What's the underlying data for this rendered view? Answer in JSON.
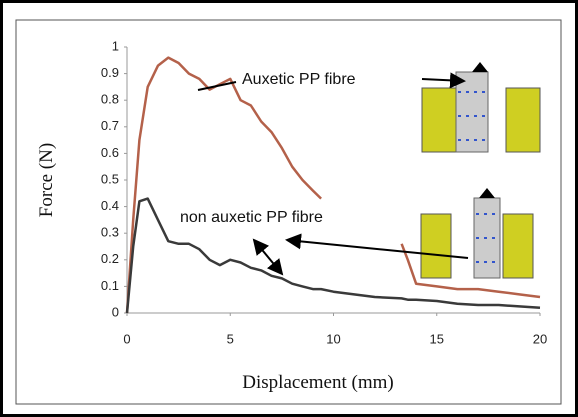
{
  "chart_data": {
    "type": "line",
    "x": [
      0,
      0.3,
      0.6,
      1,
      1.5,
      2,
      2.5,
      3,
      3.5,
      4,
      4.5,
      5,
      5.5,
      6,
      6.5,
      7,
      7.5,
      8,
      8.5,
      9,
      9.4,
      10,
      11,
      12,
      13.3,
      13.6,
      14,
      15,
      16,
      17,
      18,
      19,
      20
    ],
    "series": [
      {
        "name": "Auxetic PP fibre",
        "color": "#b4614a",
        "values": [
          0,
          0.35,
          0.65,
          0.85,
          0.93,
          0.96,
          0.94,
          0.9,
          0.88,
          0.84,
          0.86,
          0.88,
          0.8,
          0.78,
          0.72,
          0.68,
          0.62,
          0.55,
          0.5,
          0.46,
          0.43,
          null,
          null,
          null,
          0.26,
          0.2,
          0.11,
          0.1,
          0.09,
          0.09,
          0.08,
          0.07,
          0.06
        ]
      },
      {
        "name": "non auxetic PP fibre",
        "color": "#3a3a3a",
        "values": [
          0,
          0.25,
          0.42,
          0.43,
          0.35,
          0.27,
          0.26,
          0.26,
          0.24,
          0.2,
          0.18,
          0.2,
          0.19,
          0.17,
          0.16,
          0.14,
          0.13,
          0.11,
          0.1,
          0.09,
          0.09,
          0.08,
          0.07,
          0.06,
          0.055,
          0.05,
          0.05,
          0.045,
          0.035,
          0.03,
          0.03,
          0.025,
          0.02
        ]
      }
    ],
    "xlabel": "Displacement (mm)",
    "ylabel": "Force (N)",
    "xlim": [
      0,
      20
    ],
    "xticks": [
      0,
      5,
      10,
      15,
      20
    ],
    "ylim": [
      0,
      1
    ],
    "yticks": [
      0,
      0.1,
      0.2,
      0.3,
      0.4,
      0.5,
      0.6,
      0.7,
      0.8,
      0.9,
      1
    ],
    "grid": false
  }
}
